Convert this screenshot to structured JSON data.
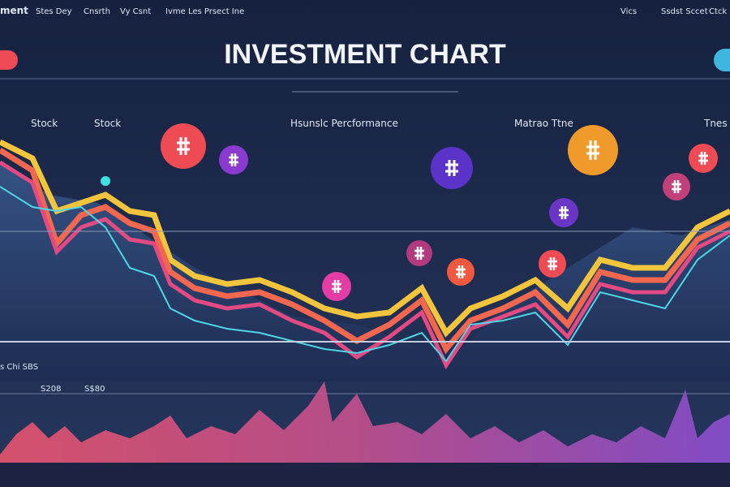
{
  "nav": {
    "brand": "ment",
    "links": [
      "Stes Dey",
      "Cnsrth",
      "Vy Csnt",
      "Ivme Les Prsect Ine"
    ],
    "right": [
      "Vics",
      "Ssdst Sccet",
      "Ctck"
    ]
  },
  "header": {
    "title": "INVESTMENT CHART"
  },
  "chart": {
    "labels": [
      "Stock",
      "Stock",
      "Hsunslc Percformance",
      "Matrao Ttne",
      "Tnes"
    ],
    "bottom_labels": [
      "s Chi SBS",
      "S208",
      "S$80"
    ]
  }
}
